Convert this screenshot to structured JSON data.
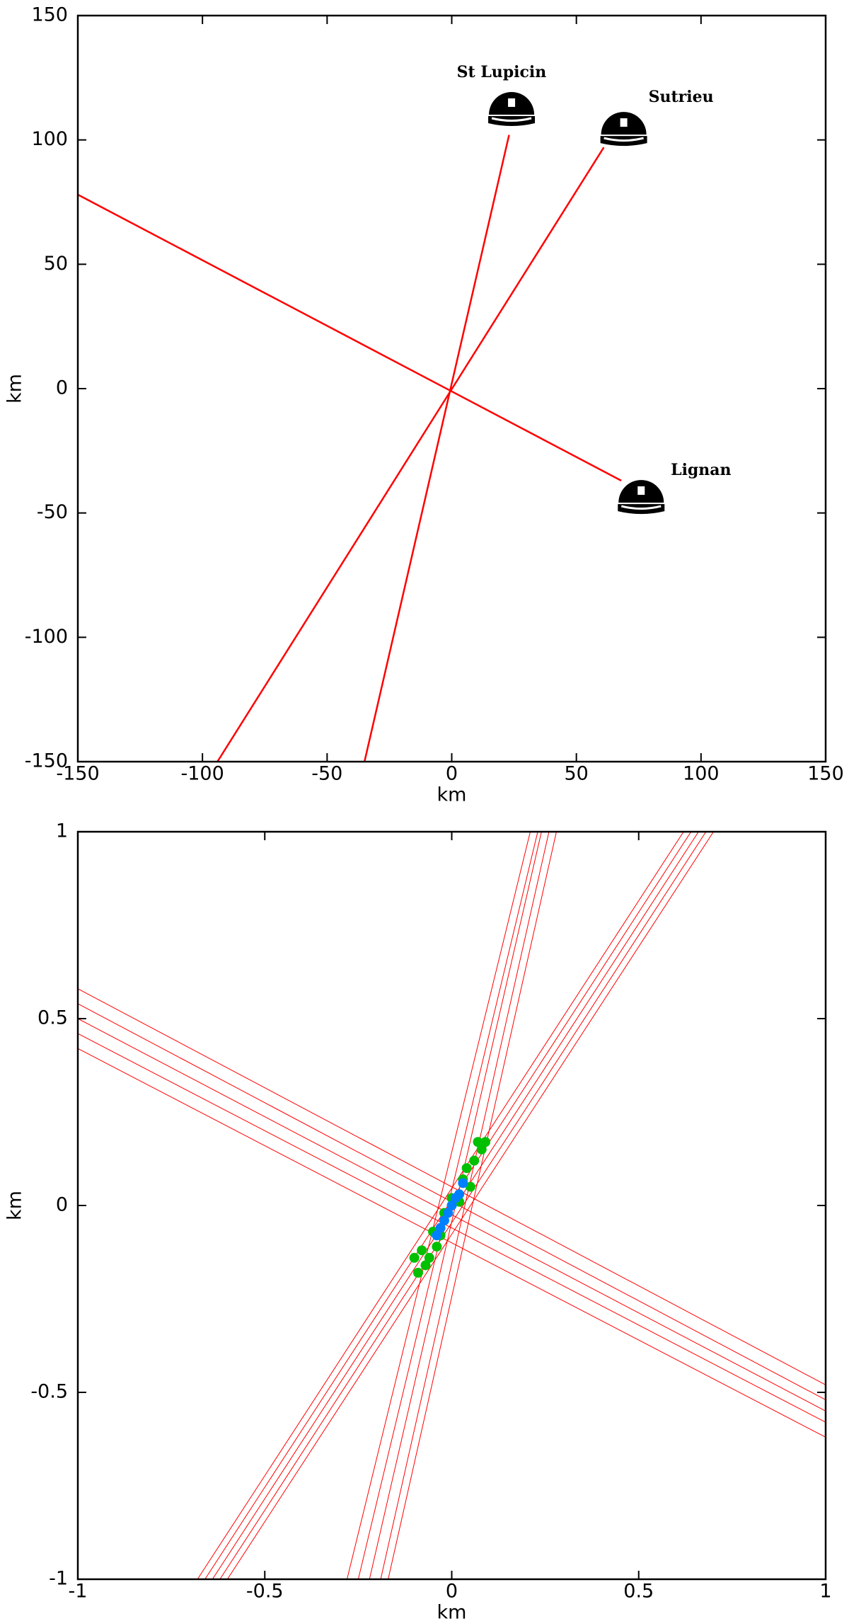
{
  "chart_data": [
    {
      "type": "line",
      "xlabel": "km",
      "ylabel": "km",
      "xlim": [
        -150,
        150
      ],
      "ylim": [
        -150,
        150
      ],
      "xticks": [
        -150,
        -100,
        -50,
        0,
        50,
        100,
        150
      ],
      "yticks": [
        -150,
        -100,
        -50,
        0,
        50,
        100,
        150
      ],
      "series": [
        {
          "color": "#ff0000",
          "mode": "line",
          "x": [
            -150,
            68
          ],
          "values": [
            78,
            -37
          ]
        },
        {
          "color": "#ff0000",
          "mode": "line",
          "x": [
            -35,
            23
          ],
          "values": [
            -150,
            102
          ]
        },
        {
          "color": "#ff0000",
          "mode": "line",
          "x": [
            -94,
            61
          ],
          "values": [
            -150,
            97
          ]
        }
      ],
      "stations": [
        {
          "x": 24,
          "y": 113
        },
        {
          "x": 69,
          "y": 105
        },
        {
          "x": 76,
          "y": -43
        }
      ],
      "annotations": [
        {
          "text": "St Lupicin",
          "x": 20,
          "y": 127
        },
        {
          "text": "Sutrieu",
          "x": 92,
          "y": 117
        },
        {
          "text": "Lignan",
          "x": 100,
          "y": -33
        }
      ]
    },
    {
      "type": "line",
      "xlabel": "km",
      "ylabel": "km",
      "xlim": [
        -1,
        1
      ],
      "ylim": [
        -1,
        1
      ],
      "xticks": [
        -1,
        -0.5,
        0,
        0.5,
        1
      ],
      "yticks": [
        -1,
        -0.5,
        0,
        0.5,
        1
      ],
      "series": [
        {
          "color": "#ff0000",
          "mode": "line",
          "x": [
            -1,
            1,
            null,
            -1,
            1,
            null,
            -1,
            1,
            null,
            -1,
            1,
            null,
            -1,
            1
          ],
          "values": [
            0.58,
            -0.48,
            null,
            0.54,
            -0.52,
            null,
            0.5,
            -0.55,
            null,
            0.46,
            -0.58,
            null,
            0.42,
            -0.62
          ]
        },
        {
          "color": "#ff0000",
          "mode": "line",
          "x": [
            -0.28,
            0.21,
            null,
            -0.25,
            0.23,
            null,
            -0.22,
            0.24,
            null,
            -0.19,
            0.26,
            null,
            -0.17,
            0.28
          ],
          "values": [
            -1,
            1,
            null,
            -1,
            1,
            null,
            -1,
            1,
            null,
            -1,
            1,
            null,
            -1,
            1
          ]
        },
        {
          "color": "#ff0000",
          "mode": "line",
          "x": [
            -0.68,
            0.62,
            null,
            -0.66,
            0.64,
            null,
            -0.64,
            0.66,
            null,
            -0.62,
            0.68,
            null,
            -0.6,
            0.7
          ],
          "values": [
            -1,
            1,
            null,
            -1,
            1,
            null,
            -1,
            1,
            null,
            -1,
            1,
            null,
            -1,
            1
          ]
        },
        {
          "color": "#00c000",
          "mode": "markers",
          "x": [
            -0.09,
            -0.08,
            -0.06,
            -0.05,
            -0.03,
            -0.02,
            0,
            0.02,
            0.03,
            0.05,
            0.06,
            0.08,
            -0.1,
            -0.07,
            0.07,
            0.09,
            -0.04,
            0.04
          ],
          "values": [
            -0.18,
            -0.12,
            -0.14,
            -0.07,
            -0.08,
            -0.02,
            0.02,
            0.01,
            0.07,
            0.05,
            0.12,
            0.15,
            -0.14,
            -0.16,
            0.17,
            0.17,
            -0.11,
            0.1
          ]
        },
        {
          "color": "#0080ff",
          "mode": "markers",
          "x": [
            -0.04,
            -0.02,
            -0.01,
            0,
            0.01,
            0.02,
            0.03,
            -0.03
          ],
          "values": [
            -0.08,
            -0.04,
            -0.02,
            0,
            0.02,
            0.03,
            0.06,
            -0.06
          ]
        }
      ]
    }
  ]
}
